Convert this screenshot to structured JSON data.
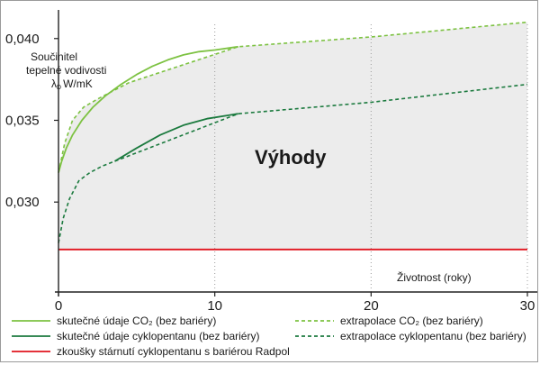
{
  "chart_data": {
    "type": "line",
    "ylabel": [
      "Součinitel",
      "tepelné vodivosti",
      "λ",
      "W/mK"
    ],
    "ylabel_subscript": "D",
    "xlabel": "Životnost (roky)",
    "x_ticks": [
      0,
      10,
      20,
      30
    ],
    "x_tick_labels": [
      "0",
      "10",
      "20",
      "30"
    ],
    "y_ticks": [
      0.03,
      0.035,
      0.04
    ],
    "y_tick_labels": [
      "0,030",
      "0,035",
      "0,040"
    ],
    "xlim": [
      0,
      30
    ],
    "ylim": [
      0.0245,
      0.0412
    ],
    "annotation": "Výhody",
    "series": [
      {
        "name": "skutečné údaje CO₂ (bez bariéry)",
        "color": "#7dc242",
        "style": "solid",
        "points": [
          [
            0.0,
            0.0318
          ],
          [
            0.2,
            0.0325
          ],
          [
            0.5,
            0.0333
          ],
          [
            0.9,
            0.0341
          ],
          [
            1.5,
            0.035
          ],
          [
            2.2,
            0.0358
          ],
          [
            3.0,
            0.0365
          ],
          [
            4.0,
            0.0372
          ],
          [
            5.0,
            0.0378
          ],
          [
            6.0,
            0.0383
          ],
          [
            7.0,
            0.0387
          ],
          [
            8.0,
            0.039
          ],
          [
            9.0,
            0.0392
          ],
          [
            10.0,
            0.0393
          ],
          [
            11.5,
            0.0395
          ]
        ]
      },
      {
        "name": "extrapolace CO₂ (bez bariéry)",
        "color": "#7dc242",
        "style": "dashed",
        "points": [
          [
            0.0,
            0.0318
          ],
          [
            0.4,
            0.0336
          ],
          [
            0.9,
            0.035
          ],
          [
            1.6,
            0.0358
          ],
          [
            2.5,
            0.0363
          ],
          [
            3.5,
            0.0368
          ],
          [
            4.5,
            0.0373
          ],
          [
            11.5,
            0.0395
          ],
          [
            20.0,
            0.0401
          ],
          [
            30.0,
            0.041
          ]
        ]
      },
      {
        "name": "skutečné údaje cyklopentanu (bez bariéry)",
        "color": "#1b7a3e",
        "style": "solid",
        "points": [
          [
            3.6,
            0.0325
          ],
          [
            5.0,
            0.0333
          ],
          [
            6.5,
            0.0341
          ],
          [
            8.0,
            0.0347
          ],
          [
            9.5,
            0.0351
          ],
          [
            11.5,
            0.0354
          ]
        ]
      },
      {
        "name": "extrapolace cyklopentanu (bez bariéry)",
        "color": "#1b7a3e",
        "style": "dashed",
        "points": [
          [
            0.0,
            0.0275
          ],
          [
            0.3,
            0.029
          ],
          [
            0.7,
            0.0302
          ],
          [
            1.3,
            0.0313
          ],
          [
            2.0,
            0.0318
          ],
          [
            2.8,
            0.0322
          ],
          [
            3.6,
            0.0325
          ],
          [
            11.5,
            0.0354
          ],
          [
            20.0,
            0.0361
          ],
          [
            30.0,
            0.0372
          ]
        ]
      },
      {
        "name": "zkoušky stárnutí cyklopentanu s bariérou Radpol",
        "color": "#e0141e",
        "style": "solid",
        "points": [
          [
            0.0,
            0.0271
          ],
          [
            30.0,
            0.0271
          ]
        ]
      }
    ],
    "legend": [
      {
        "label": "skutečné údaje CO₂ (bez bariéry)",
        "color": "#7dc242",
        "style": "solid",
        "column": "left"
      },
      {
        "label": "skutečné údaje cyklopentanu (bez bariéry)",
        "color": "#1b7a3e",
        "style": "solid",
        "column": "left"
      },
      {
        "label": "zkoušky stárnutí cyklopentanu s bariérou Radpol",
        "color": "#e0141e",
        "style": "solid",
        "column": "left"
      },
      {
        "label": "extrapolace CO₂ (bez bariéry)",
        "color": "#7dc242",
        "style": "dashed",
        "column": "right"
      },
      {
        "label": "extrapolace cyklopentanu (bez bariéry)",
        "color": "#1b7a3e",
        "style": "dashed",
        "column": "right"
      }
    ]
  }
}
